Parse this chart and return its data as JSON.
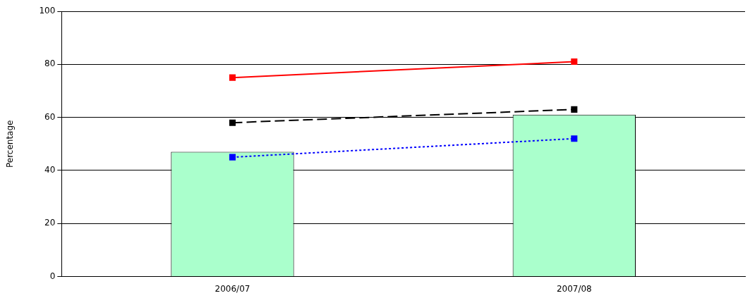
{
  "chart_data": {
    "type": "bar",
    "ylabel": "Percentage",
    "categories": [
      "2006/07",
      "2007/08"
    ],
    "series": [
      {
        "color": "#aaffcc",
        "values": [
          47,
          61
        ]
      },
      {
        "type": "line",
        "color": "#ff0000",
        "line_style": "solid",
        "values": [
          75,
          81
        ]
      },
      {
        "type": "line",
        "color": "#000000",
        "line_style": "dashed",
        "values": [
          58,
          63
        ]
      },
      {
        "type": "line",
        "color": "#0000ff",
        "line_style": "dotted",
        "values": [
          45,
          52
        ]
      }
    ],
    "ylim": [
      0,
      100
    ],
    "yticks": [
      0,
      20,
      40,
      60,
      80,
      100
    ],
    "grid": "y",
    "legend": false,
    "marker": "square"
  }
}
